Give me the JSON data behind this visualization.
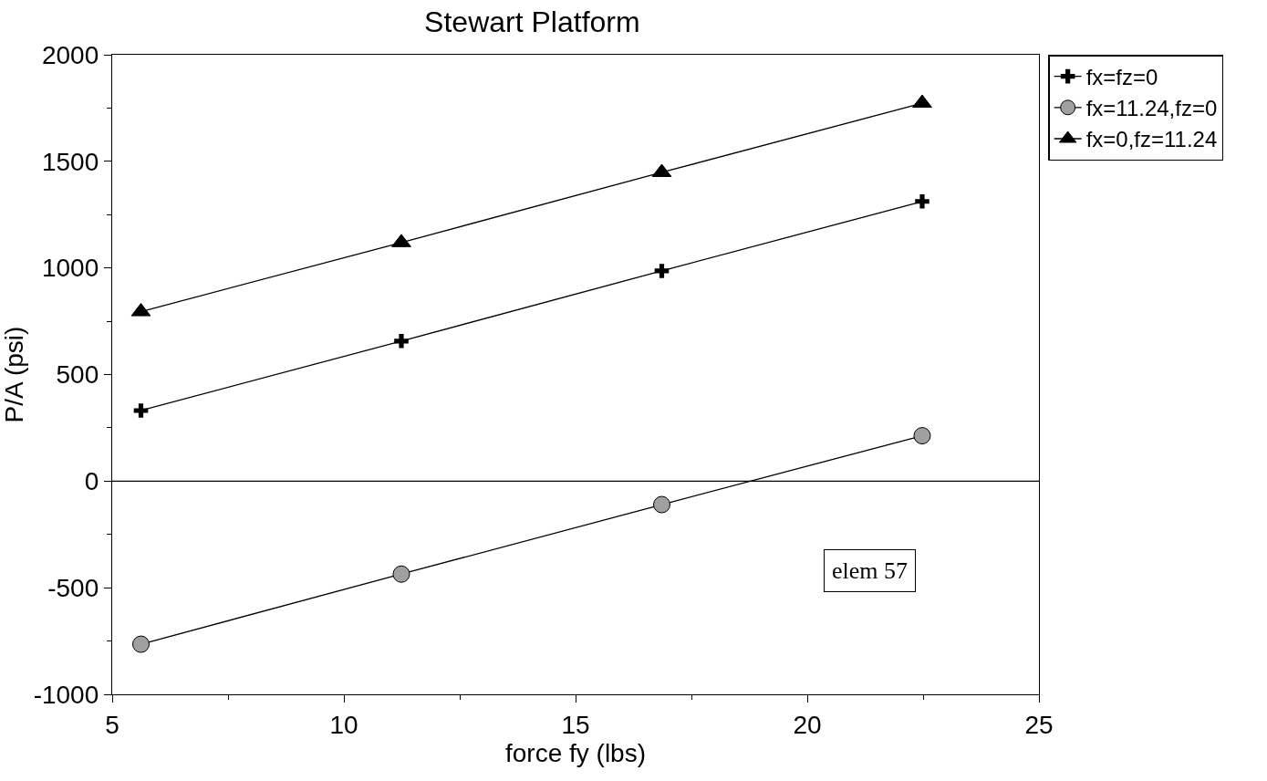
{
  "chart_data": {
    "type": "line",
    "title": "Stewart Platform",
    "xlabel": "force fy (lbs)",
    "ylabel": "P/A (psi)",
    "x": [
      5.62,
      11.24,
      16.86,
      22.48
    ],
    "series": [
      {
        "name": "fx=fz=0",
        "color": "#000000",
        "marker": "cross",
        "values": [
          331,
          657,
          986,
          1312
        ]
      },
      {
        "name": "fx=11.24,fz=0",
        "color": "#a0a0a0",
        "marker": "circle",
        "values": [
          -765,
          -436,
          -110,
          213
        ]
      },
      {
        "name": "fx=0,fz=11.24",
        "color": "#000000",
        "marker": "triangle",
        "values": [
          795,
          1119,
          1448,
          1773
        ]
      }
    ],
    "xlim": [
      5,
      25
    ],
    "xticks": [
      5,
      10,
      15,
      20,
      25
    ],
    "ylim": [
      -1000,
      2000
    ],
    "yticks": [
      -1000,
      -500,
      0,
      500,
      1000,
      1500,
      2000
    ],
    "ref_lines": [
      {
        "axis": "y",
        "value": 0,
        "color": "#000000"
      }
    ],
    "annotations": [
      "elem 57"
    ],
    "legend": "top right",
    "line_style": "solid"
  }
}
